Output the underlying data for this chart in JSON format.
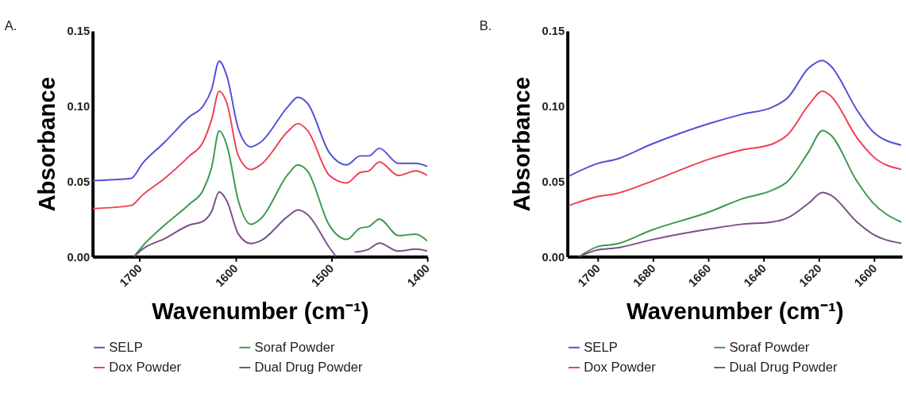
{
  "chart_data": [
    {
      "type": "line",
      "title": "A.",
      "xlabel": "Wavenumber (cm⁻¹)",
      "ylabel": "Absorbance",
      "xlim": [
        1749,
        1400
      ],
      "xticks": [
        1700,
        1600,
        1500,
        1400
      ],
      "ylim": [
        0,
        0.15
      ],
      "yticks": [
        {
          "value": 0,
          "label": "0.00"
        },
        0.05,
        {
          "value": 0.1,
          "label": "0.10"
        },
        {
          "value": 0.15,
          "label": "0.15"
        }
      ],
      "grid": false,
      "legend": "bottom",
      "marker": "none",
      "line_style": "solid",
      "series": [
        {
          "name": "SELP",
          "color": "#5050d8",
          "x": [
            1749,
            1709,
            1697,
            1674,
            1648,
            1634,
            1625,
            1617,
            1609,
            1597,
            1584,
            1574,
            1545,
            1535,
            1525,
            1502,
            1484,
            1470,
            1461,
            1450,
            1430,
            1412,
            1400
          ],
          "values": [
            0.0506,
            0.052,
            0.062,
            0.076,
            0.093,
            0.1,
            0.111,
            0.13,
            0.12,
            0.085,
            0.073,
            0.076,
            0.1,
            0.106,
            0.102,
            0.069,
            0.061,
            0.067,
            0.067,
            0.072,
            0.062,
            0.062,
            0.06
          ]
        },
        {
          "name": "Dox Powder",
          "color": "#ee4052",
          "x": [
            1749,
            1709,
            1697,
            1674,
            1648,
            1634,
            1625,
            1617,
            1609,
            1597,
            1584,
            1574,
            1545,
            1535,
            1525,
            1502,
            1484,
            1470,
            1461,
            1450,
            1430,
            1412,
            1400
          ],
          "values": [
            0.032,
            0.034,
            0.041,
            0.052,
            0.067,
            0.076,
            0.091,
            0.11,
            0.102,
            0.067,
            0.058,
            0.061,
            0.0835,
            0.0885,
            0.084,
            0.054,
            0.049,
            0.056,
            0.057,
            0.063,
            0.054,
            0.057,
            0.054
          ]
        },
        {
          "name": "Soraf Powder",
          "color": "#3c9a4c",
          "x": [
            1706,
            1697,
            1674,
            1648,
            1634,
            1625,
            1617,
            1609,
            1597,
            1584,
            1574,
            1545,
            1535,
            1525,
            1502,
            1484,
            1470,
            1461,
            1450,
            1430,
            1412,
            1400
          ],
          "values": [
            0.0,
            0.007,
            0.021,
            0.035,
            0.044,
            0.059,
            0.0835,
            0.074,
            0.037,
            0.0215,
            0.025,
            0.055,
            0.061,
            0.057,
            0.0207,
            0.0115,
            0.019,
            0.02,
            0.025,
            0.014,
            0.015,
            0.0105
          ]
        },
        {
          "name": "Dual Drug Powder",
          "color": "#7a5088",
          "x": [
            1706,
            1697,
            1674,
            1648,
            1634,
            1625,
            1617,
            1609,
            1597,
            1584,
            1574,
            1545,
            1535,
            1525,
            1502,
            1495,
            1486,
            1476,
            1461,
            1450,
            1430,
            1412,
            1400
          ],
          "values": [
            0.0,
            0.005,
            0.012,
            0.021,
            0.0235,
            0.03,
            0.043,
            0.037,
            0.015,
            0.0087,
            0.0105,
            0.027,
            0.031,
            0.028,
            0.006,
            0.0,
            null,
            0.003,
            0.005,
            0.009,
            0.0037,
            0.005,
            0.0037
          ]
        }
      ]
    },
    {
      "type": "line",
      "title": "B.",
      "xlabel": "Wavenumber (cm⁻¹)",
      "ylabel": "Absorbance",
      "xlim": [
        1711,
        1590
      ],
      "xticks": [
        1700,
        1680,
        1660,
        1640,
        1620,
        1600
      ],
      "ylim": [
        0,
        0.15
      ],
      "yticks": [
        {
          "value": 0,
          "label": "0.00"
        },
        0.05,
        {
          "value": 0.1,
          "label": "0.10"
        },
        {
          "value": 0.15,
          "label": "0.15"
        }
      ],
      "grid": false,
      "legend": "bottom",
      "marker": "none",
      "line_style": "solid",
      "series": [
        {
          "name": "SELP",
          "color": "#5050d8",
          "x": [
            1710.5,
            1700,
            1693.2,
            1680.7,
            1659.4,
            1647.8,
            1637.2,
            1631.4,
            1623.7,
            1618.8,
            1615.9,
            1606.3,
            1600.5,
            1590.3
          ],
          "values": [
            0.0535,
            0.062,
            0.0648,
            0.0747,
            0.0887,
            0.0947,
            0.0992,
            0.1056,
            0.1255,
            0.1304,
            0.127,
            0.0974,
            0.083,
            0.0742
          ]
        },
        {
          "name": "Dox Powder",
          "color": "#ee4052",
          "x": [
            1710.5,
            1700,
            1693.2,
            1680.7,
            1659.4,
            1647.8,
            1637.2,
            1631.4,
            1623.7,
            1618.8,
            1615.9,
            1606.3,
            1600.5,
            1590.3
          ],
          "values": [
            0.034,
            0.04,
            0.042,
            0.05,
            0.065,
            0.071,
            0.0747,
            0.081,
            0.101,
            0.11,
            0.107,
            0.079,
            0.0666,
            0.058
          ]
        },
        {
          "name": "Soraf Powder",
          "color": "#3c9a4c",
          "x": [
            1706.8,
            1700,
            1693.2,
            1680.7,
            1659.4,
            1647.8,
            1637.2,
            1631.4,
            1623.7,
            1618.8,
            1615.9,
            1606.3,
            1600.5,
            1590.3
          ],
          "values": [
            0.0,
            0.0067,
            0.0085,
            0.0176,
            0.03,
            0.0385,
            0.044,
            0.05,
            0.07,
            0.0838,
            0.081,
            0.05,
            0.0357,
            0.023
          ]
        },
        {
          "name": "Dual Drug Powder",
          "color": "#7a5088",
          "x": [
            1706.8,
            1700,
            1693.2,
            1680.7,
            1659.4,
            1647.8,
            1637.2,
            1631.4,
            1623.7,
            1618.8,
            1615.9,
            1606.3,
            1600.5,
            1590.3
          ],
          "values": [
            0.0,
            0.0045,
            0.0058,
            0.0112,
            0.0185,
            0.0216,
            0.023,
            0.0258,
            0.0357,
            0.0426,
            0.041,
            0.023,
            0.0149,
            0.0089
          ]
        }
      ]
    }
  ]
}
